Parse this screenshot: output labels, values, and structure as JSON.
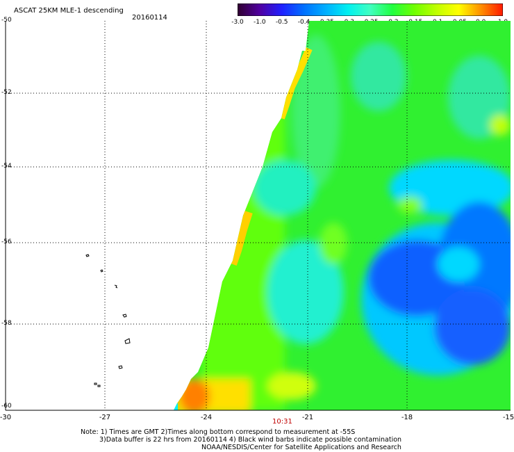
{
  "header": {
    "title": "ASCAT 25KM MLE-1 descending",
    "date": "20160114"
  },
  "colorbar": {
    "labels": [
      "-3.0",
      "-1.0",
      "-0.5",
      "-0.4",
      "-0.35",
      "-0.3",
      "-0.25",
      "-0.2",
      "-0.15",
      "-0.1",
      "-0.05",
      "0.0",
      "1.0"
    ],
    "colors": [
      "#300030",
      "#5000a0",
      "#2020ff",
      "#0070ff",
      "#00b0ff",
      "#00f0f0",
      "#40ffc0",
      "#20ff40",
      "#70ff00",
      "#c0ff00",
      "#ffff00",
      "#ff9000",
      "#ff1800"
    ]
  },
  "map": {
    "lat_labels": [
      "-50",
      "-52",
      "-54",
      "-56",
      "-58",
      "-60"
    ],
    "lon_labels": [
      "-30",
      "-27",
      "-24",
      "-21",
      "-18",
      "-15"
    ],
    "pass_time": "10:31"
  },
  "notes": {
    "line1": "Note: 1) Times are GMT 2)Times along bottom correspond to measurement at -55S",
    "line2": "3)Data buffer is 22 hrs from 20160114 4) Black wind barbs indicate possible contamination",
    "line3": "NOAA/NESDIS/Center for Satellite Applications and Research"
  }
}
